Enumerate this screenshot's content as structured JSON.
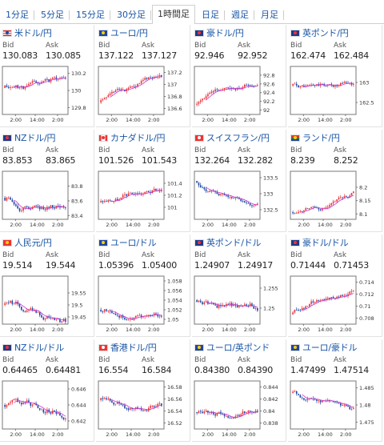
{
  "tabs": [
    {
      "label": "1分足",
      "active": false
    },
    {
      "label": "5分足",
      "active": false
    },
    {
      "label": "15分足",
      "active": false
    },
    {
      "label": "30分足",
      "active": false
    },
    {
      "label": "1時間足",
      "active": true
    },
    {
      "label": "日足",
      "active": false
    },
    {
      "label": "週足",
      "active": false
    },
    {
      "label": "月足",
      "active": false
    }
  ],
  "bid_label": "Bid",
  "ask_label": "Ask",
  "x_ticks": [
    "2:00",
    "14:00",
    "2:00"
  ],
  "colors": {
    "up": "#e8333a",
    "down": "#1f46a3",
    "ma": "#cc33cc",
    "link": "#1a55a5"
  },
  "cards": [
    {
      "pair": "米ドル/円",
      "flag": "us-flag",
      "bid": "130.083",
      "ask": "130.085",
      "chart_data": {
        "type": "candlestick",
        "y_ticks": [
          "130.2",
          "130",
          "129.8"
        ],
        "ylim": [
          129.72,
          130.28
        ],
        "trend": 0.1,
        "vol": 0.35,
        "start": 0.55,
        "seed": 11
      }
    },
    {
      "pair": "ユーロ/円",
      "flag": "eu-flag",
      "bid": "137.122",
      "ask": "137.127",
      "chart_data": {
        "type": "candlestick",
        "y_ticks": [
          "137.2",
          "137",
          "136.8",
          "136.6"
        ],
        "ylim": [
          136.5,
          137.3
        ],
        "trend": 0.5,
        "vol": 0.25,
        "start": 0.25,
        "seed": 23
      }
    },
    {
      "pair": "豪ドル/円",
      "flag": "au-flag",
      "bid": "92.946",
      "ask": "92.952",
      "chart_data": {
        "type": "candlestick",
        "y_ticks": [
          "92.8",
          "92.6",
          "92.4",
          "92.2",
          "92"
        ],
        "ylim": [
          91.9,
          93.0
        ],
        "trend": 0.7,
        "vol": 0.2,
        "start": 0.2,
        "seed": 37
      }
    },
    {
      "pair": "英ポンド/円",
      "flag": "uk-flag",
      "bid": "162.474",
      "ask": "162.484",
      "chart_data": {
        "type": "candlestick",
        "y_ticks": [
          "163",
          "162.5"
        ],
        "ylim": [
          162.2,
          163.4
        ],
        "trend": -0.35,
        "vol": 0.25,
        "start": 0.6,
        "seed": 41
      }
    },
    {
      "pair": "NZドル/円",
      "flag": "nz-flag",
      "bid": "83.853",
      "ask": "83.865",
      "chart_data": {
        "type": "candlestick",
        "y_ticks": [
          "83.8",
          "83.6",
          "83.4"
        ],
        "ylim": [
          83.35,
          84.0
        ],
        "trend": 0.0,
        "vol": 0.35,
        "start": 0.45,
        "seed": 53
      }
    },
    {
      "pair": "カナダドル/円",
      "flag": "ca-flag",
      "bid": "101.526",
      "ask": "101.543",
      "chart_data": {
        "type": "candlestick",
        "y_ticks": [
          "101.4",
          "101.2",
          "101"
        ],
        "ylim": [
          100.8,
          101.6
        ],
        "trend": 0.4,
        "vol": 0.3,
        "start": 0.35,
        "seed": 67
      }
    },
    {
      "pair": "スイスフラン/円",
      "flag": "ch-flag",
      "bid": "132.264",
      "ask": "132.282",
      "chart_data": {
        "type": "candlestick",
        "y_ticks": [
          "133.5",
          "133",
          "132.5"
        ],
        "ylim": [
          132.2,
          133.7
        ],
        "trend": -0.6,
        "vol": 0.2,
        "start": 0.8,
        "seed": 71
      }
    },
    {
      "pair": "ランド/円",
      "flag": "za-flag",
      "bid": "8.239",
      "ask": "8.252",
      "chart_data": {
        "type": "candlestick",
        "y_ticks": [
          "8.2",
          "8.15",
          "8.1"
        ],
        "ylim": [
          8.08,
          8.26
        ],
        "trend": 0.6,
        "vol": 0.25,
        "start": 0.15,
        "seed": 83
      }
    },
    {
      "pair": "人民元/円",
      "flag": "cn-flag",
      "bid": "19.514",
      "ask": "19.544",
      "chart_data": {
        "type": "candlestick",
        "y_ticks": [
          "19.55",
          "19.5",
          "19.45"
        ],
        "ylim": [
          19.42,
          19.62
        ],
        "trend": -0.1,
        "vol": 0.4,
        "start": 0.4,
        "seed": 97
      }
    },
    {
      "pair": "ユーロ/ドル",
      "flag": "eu-flag",
      "bid": "1.05396",
      "ask": "1.05400",
      "chart_data": {
        "type": "candlestick",
        "y_ticks": [
          "1.058",
          "1.056",
          "1.054",
          "1.052",
          "1.05"
        ],
        "ylim": [
          1.049,
          1.059
        ],
        "trend": 0.25,
        "vol": 0.3,
        "start": 0.3,
        "seed": 101
      }
    },
    {
      "pair": "英ポンド/ドル",
      "flag": "uk-flag",
      "bid": "1.24907",
      "ask": "1.24917",
      "chart_data": {
        "type": "candlestick",
        "y_ticks": [
          "1.255",
          "1.25"
        ],
        "ylim": [
          1.246,
          1.258
        ],
        "trend": 0.0,
        "vol": 0.35,
        "start": 0.5,
        "seed": 113
      }
    },
    {
      "pair": "豪ドル/ドル",
      "flag": "au-flag",
      "bid": "0.71444",
      "ask": "0.71453",
      "chart_data": {
        "type": "candlestick",
        "y_ticks": [
          "0.714",
          "0.712",
          "0.71",
          "0.708"
        ],
        "ylim": [
          0.707,
          0.715
        ],
        "trend": 0.6,
        "vol": 0.25,
        "start": 0.2,
        "seed": 127
      }
    },
    {
      "pair": "NZドル/ドル",
      "flag": "nz-flag",
      "bid": "0.64465",
      "ask": "0.64481",
      "chart_data": {
        "type": "candlestick",
        "y_ticks": [
          "0.646",
          "0.644",
          "0.642"
        ],
        "ylim": [
          0.641,
          0.647
        ],
        "trend": 0.0,
        "vol": 0.4,
        "start": 0.5,
        "seed": 131
      }
    },
    {
      "pair": "香港ドル/円",
      "flag": "hk-flag",
      "bid": "16.554",
      "ask": "16.584",
      "chart_data": {
        "type": "candlestick",
        "y_ticks": [
          "16.58",
          "16.56",
          "16.54",
          "16.52"
        ],
        "ylim": [
          16.51,
          16.59
        ],
        "trend": -0.2,
        "vol": 0.35,
        "start": 0.6,
        "seed": 139
      }
    },
    {
      "pair": "ユーロ/英ポンド",
      "flag": "eu-flag",
      "bid": "0.84380",
      "ask": "0.84390",
      "chart_data": {
        "type": "candlestick",
        "y_ticks": [
          "0.844",
          "0.842",
          "0.84",
          "0.838"
        ],
        "ylim": [
          0.837,
          0.845
        ],
        "trend": 0.35,
        "vol": 0.3,
        "start": 0.35,
        "seed": 149
      }
    },
    {
      "pair": "ユーロ/豪ドル",
      "flag": "eu-flag",
      "bid": "1.47499",
      "ask": "1.47514",
      "chart_data": {
        "type": "candlestick",
        "y_ticks": [
          "1.485",
          "1.48",
          "1.475"
        ],
        "ylim": [
          1.473,
          1.487
        ],
        "trend": -0.5,
        "vol": 0.25,
        "start": 0.75,
        "seed": 151
      }
    }
  ]
}
